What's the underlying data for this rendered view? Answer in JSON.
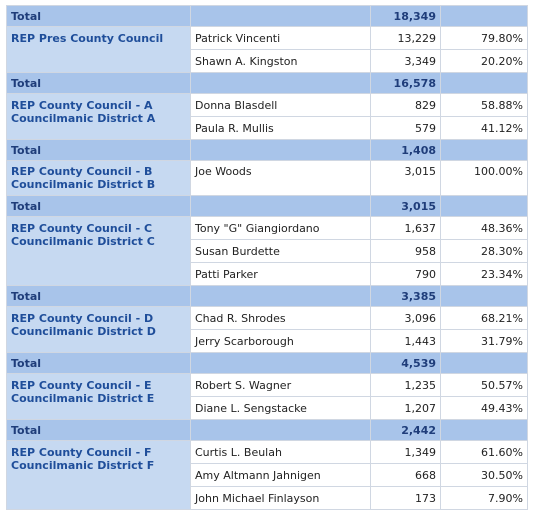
{
  "top_total": {
    "label": "Total",
    "value": "18,349"
  },
  "sections": [
    {
      "race": "REP Pres County Council",
      "candidates": [
        {
          "name": "Patrick Vincenti",
          "votes": "13,229",
          "pct": "79.80%"
        },
        {
          "name": "Shawn A. Kingston",
          "votes": "3,349",
          "pct": "20.20%"
        }
      ],
      "total": {
        "label": "Total",
        "value": "16,578"
      }
    },
    {
      "race": "REP County Council  - A Councilmanic District A",
      "candidates": [
        {
          "name": "Donna Blasdell",
          "votes": "829",
          "pct": "58.88%"
        },
        {
          "name": "Paula R. Mullis",
          "votes": "579",
          "pct": "41.12%"
        }
      ],
      "total": {
        "label": "Total",
        "value": "1,408"
      }
    },
    {
      "race": "REP County Council  - B Councilmanic District B",
      "candidates": [
        {
          "name": "Joe Woods",
          "votes": "3,015",
          "pct": "100.00%"
        }
      ],
      "total": {
        "label": "Total",
        "value": "3,015"
      }
    },
    {
      "race": "REP County Council  - C Councilmanic District C",
      "candidates": [
        {
          "name": "Tony \"G\" Giangiordano",
          "votes": "1,637",
          "pct": "48.36%"
        },
        {
          "name": "Susan Burdette",
          "votes": "958",
          "pct": "28.30%"
        },
        {
          "name": "Patti Parker",
          "votes": "790",
          "pct": "23.34%"
        }
      ],
      "total": {
        "label": "Total",
        "value": "3,385"
      }
    },
    {
      "race": "REP County Council  - D Councilmanic District D",
      "candidates": [
        {
          "name": "Chad R. Shrodes",
          "votes": "3,096",
          "pct": "68.21%"
        },
        {
          "name": "Jerry Scarborough",
          "votes": "1,443",
          "pct": "31.79%"
        }
      ],
      "total": {
        "label": "Total",
        "value": "4,539"
      }
    },
    {
      "race": "REP County Council  - E Councilmanic District E",
      "candidates": [
        {
          "name": "Robert S. Wagner",
          "votes": "1,235",
          "pct": "50.57%"
        },
        {
          "name": "Diane L. Sengstacke",
          "votes": "1,207",
          "pct": "49.43%"
        }
      ],
      "total": {
        "label": "Total",
        "value": "2,442"
      }
    },
    {
      "race": "REP County Council  - F Councilmanic District F",
      "candidates": [
        {
          "name": "Curtis L. Beulah",
          "votes": "1,349",
          "pct": "61.60%"
        },
        {
          "name": "Amy Altmann Jahnigen",
          "votes": "668",
          "pct": "30.50%"
        },
        {
          "name": "John Michael Finlayson",
          "votes": "173",
          "pct": "7.90%"
        }
      ]
    }
  ]
}
